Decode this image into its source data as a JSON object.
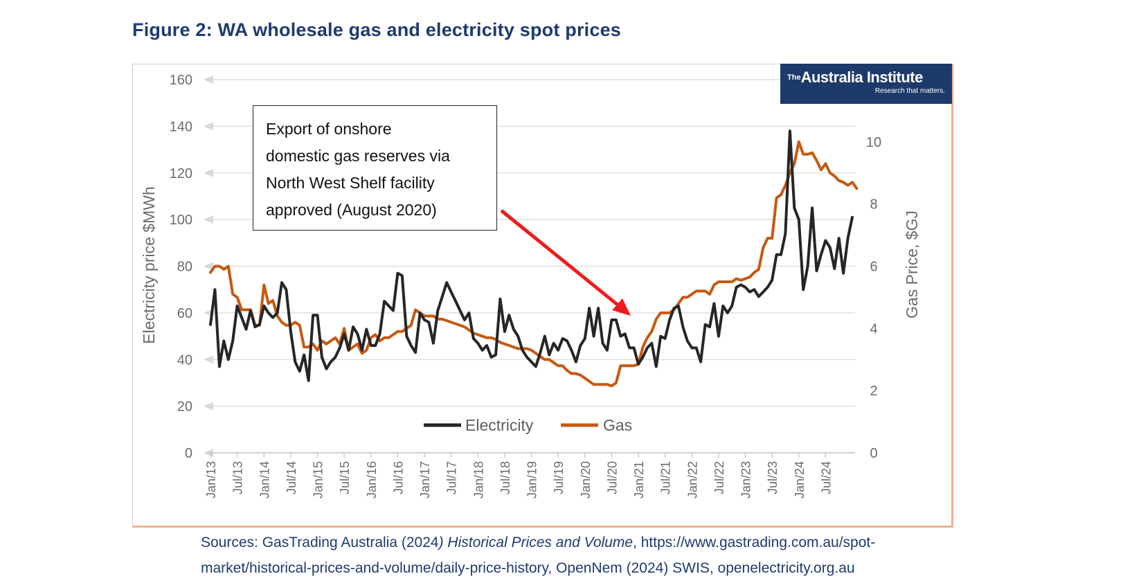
{
  "figure": {
    "title": "Figure 2: WA wholesale gas and electricity spot prices"
  },
  "logo": {
    "brand_prefix": "The",
    "brand_name": "Australia Institute",
    "tagline": "Research that matters."
  },
  "annotation": {
    "text_lines": [
      "Export of onshore",
      "domestic gas reserves via",
      "North West Shelf facility",
      "approved (August 2020)"
    ],
    "arrow_color": "#ee1c1c"
  },
  "sources": {
    "prefix": "Sources: GasTrading Australia (2024",
    "italic": ") Historical Prices and Volume",
    "rest": ", https://www.gastrading.com.au/spot-market/historical-prices-and-volume/daily-price-history, OpenNem (2024) SWIS, openelectricity.org.au"
  },
  "chart_data": {
    "type": "line",
    "y_left_label": "Electricity price $MWh",
    "y_right_label": "Gas Price, $GJ",
    "y_left_ticks": [
      "0",
      "20",
      "40",
      "60",
      "80",
      "100",
      "120",
      "140",
      "160"
    ],
    "y_right_ticks": [
      "0",
      "2",
      "4",
      "6",
      "8",
      "10"
    ],
    "ylim_left": [
      0,
      160
    ],
    "ylim_right": [
      0,
      12
    ],
    "grid": true,
    "legend_position": "bottom-center",
    "x_tick_labels": [
      "Jan/13",
      "Jul/13",
      "Jan/14",
      "Jul/14",
      "Jan/15",
      "Jul/15",
      "Jan/16",
      "Jul/16",
      "Jan/17",
      "Jul/17",
      "Jan/18",
      "Jul/18",
      "Jan/19",
      "Jul/19",
      "Jan/20",
      "Jul/20",
      "Jan/21",
      "Jul/21",
      "Jan/22",
      "Jul/22",
      "Jan/23",
      "Jul/23",
      "Jan/24",
      "Jul/24"
    ],
    "x_start": "Jan/13",
    "series": [
      {
        "name": "Electricity",
        "axis": "left",
        "color": "#262626",
        "values": [
          55,
          70,
          37,
          48,
          40,
          48,
          63,
          58,
          53,
          61,
          54,
          55,
          63,
          60,
          58,
          60,
          73,
          70,
          52,
          39,
          35,
          42,
          31,
          59,
          59,
          41,
          36,
          39,
          41,
          45,
          51,
          44,
          54,
          51,
          44,
          53,
          46,
          46,
          51,
          65,
          63,
          61,
          77,
          76,
          50,
          46,
          43,
          60,
          57,
          56,
          47,
          61,
          67,
          73,
          69,
          65,
          61,
          57,
          60,
          49,
          47,
          44,
          46,
          41,
          42,
          66,
          52,
          59,
          53,
          50,
          44,
          41,
          39,
          37,
          43,
          50,
          42,
          47,
          44,
          49,
          48,
          44,
          39,
          46,
          49,
          62,
          50,
          62,
          47,
          44,
          57,
          57,
          50,
          51,
          45,
          45,
          38,
          41,
          45,
          47,
          37,
          50,
          49,
          57,
          62,
          63,
          54,
          48,
          45,
          45,
          39,
          55,
          54,
          64,
          50,
          63,
          60,
          63,
          71,
          72,
          71,
          69,
          70,
          67,
          69,
          71,
          74,
          85,
          85,
          94,
          138,
          105,
          100,
          70,
          80,
          105,
          78,
          85,
          91,
          88,
          79,
          92,
          77,
          92,
          101
        ]
      },
      {
        "name": "Gas",
        "axis": "right",
        "color": "#c55a11",
        "values": [
          5.8,
          6.0,
          6.0,
          5.9,
          6.0,
          5.1,
          5.0,
          4.6,
          4.6,
          4.6,
          4.1,
          4.1,
          5.4,
          4.8,
          4.9,
          4.4,
          4.2,
          4.1,
          4.1,
          4.2,
          4.1,
          3.4,
          3.4,
          3.5,
          3.3,
          3.6,
          3.5,
          3.6,
          3.7,
          3.5,
          4.0,
          3.3,
          3.4,
          3.5,
          3.2,
          3.3,
          3.7,
          3.8,
          3.6,
          3.7,
          3.7,
          3.8,
          3.9,
          3.9,
          4.0,
          4.1,
          4.6,
          4.5,
          4.4,
          4.4,
          4.4,
          4.3,
          4.3,
          4.25,
          4.2,
          4.15,
          4.1,
          4.05,
          3.95,
          3.85,
          3.8,
          3.75,
          3.7,
          3.7,
          3.65,
          3.55,
          3.5,
          3.45,
          3.4,
          3.35,
          3.35,
          3.35,
          3.3,
          3.2,
          3.1,
          3.0,
          3.0,
          2.9,
          2.8,
          2.8,
          2.65,
          2.55,
          2.55,
          2.5,
          2.4,
          2.3,
          2.2,
          2.2,
          2.2,
          2.2,
          2.15,
          2.25,
          2.8,
          2.8,
          2.8,
          2.8,
          2.85,
          3.4,
          3.7,
          3.9,
          4.3,
          4.5,
          4.5,
          4.5,
          4.6,
          4.8,
          5.0,
          5.0,
          5.1,
          5.2,
          5.2,
          5.2,
          5.1,
          5.4,
          5.5,
          5.5,
          5.5,
          5.5,
          5.6,
          5.55,
          5.6,
          5.65,
          5.8,
          5.9,
          6.6,
          6.9,
          6.9,
          8.2,
          8.3,
          8.6,
          9.0,
          9.3,
          10.0,
          9.6,
          9.6,
          9.65,
          9.4,
          9.1,
          9.3,
          9.0,
          8.9,
          8.75,
          8.7,
          8.6,
          8.7,
          8.5
        ]
      }
    ]
  }
}
